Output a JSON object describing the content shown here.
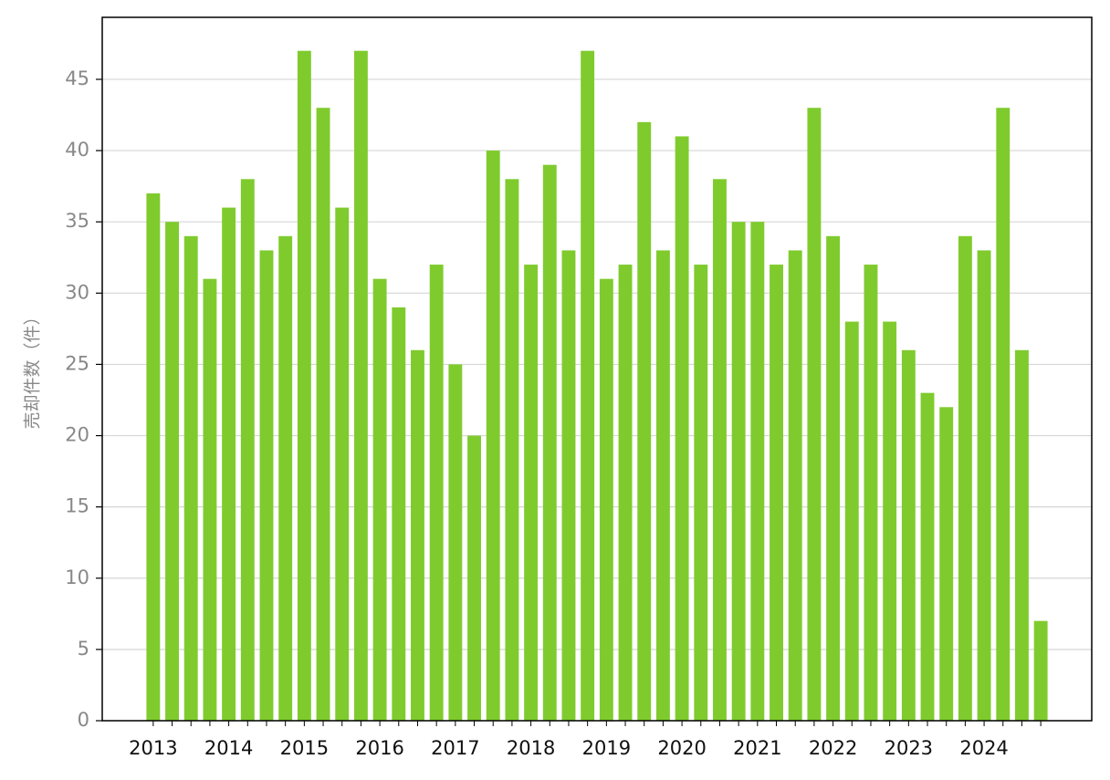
{
  "chart_data": {
    "type": "bar",
    "y_label": "売却件数（件）",
    "categories": [
      "2013",
      null,
      null,
      null,
      "2014",
      null,
      null,
      null,
      "2015",
      null,
      null,
      null,
      "2016",
      null,
      null,
      null,
      "2017",
      null,
      null,
      null,
      "2018",
      null,
      null,
      null,
      "2019",
      null,
      null,
      null,
      "2020",
      null,
      null,
      null,
      "2021",
      null,
      null,
      null,
      "2022",
      null,
      null,
      null,
      "2023",
      null,
      null,
      null,
      "2024",
      null,
      null,
      null
    ],
    "values": [
      37,
      35,
      34,
      31,
      36,
      38,
      33,
      34,
      47,
      43,
      36,
      47,
      31,
      29,
      26,
      32,
      25,
      20,
      40,
      38,
      32,
      39,
      33,
      47,
      31,
      32,
      42,
      33,
      41,
      32,
      38,
      35,
      35,
      32,
      33,
      43,
      34,
      28,
      32,
      28,
      26,
      23,
      22,
      34,
      33,
      43,
      26,
      7
    ],
    "color": "#7fcb2e",
    "ylim": [
      0,
      49.35
    ],
    "yticks": [
      0,
      5,
      10,
      15,
      20,
      25,
      30,
      35,
      40,
      45
    ],
    "grid": true
  }
}
